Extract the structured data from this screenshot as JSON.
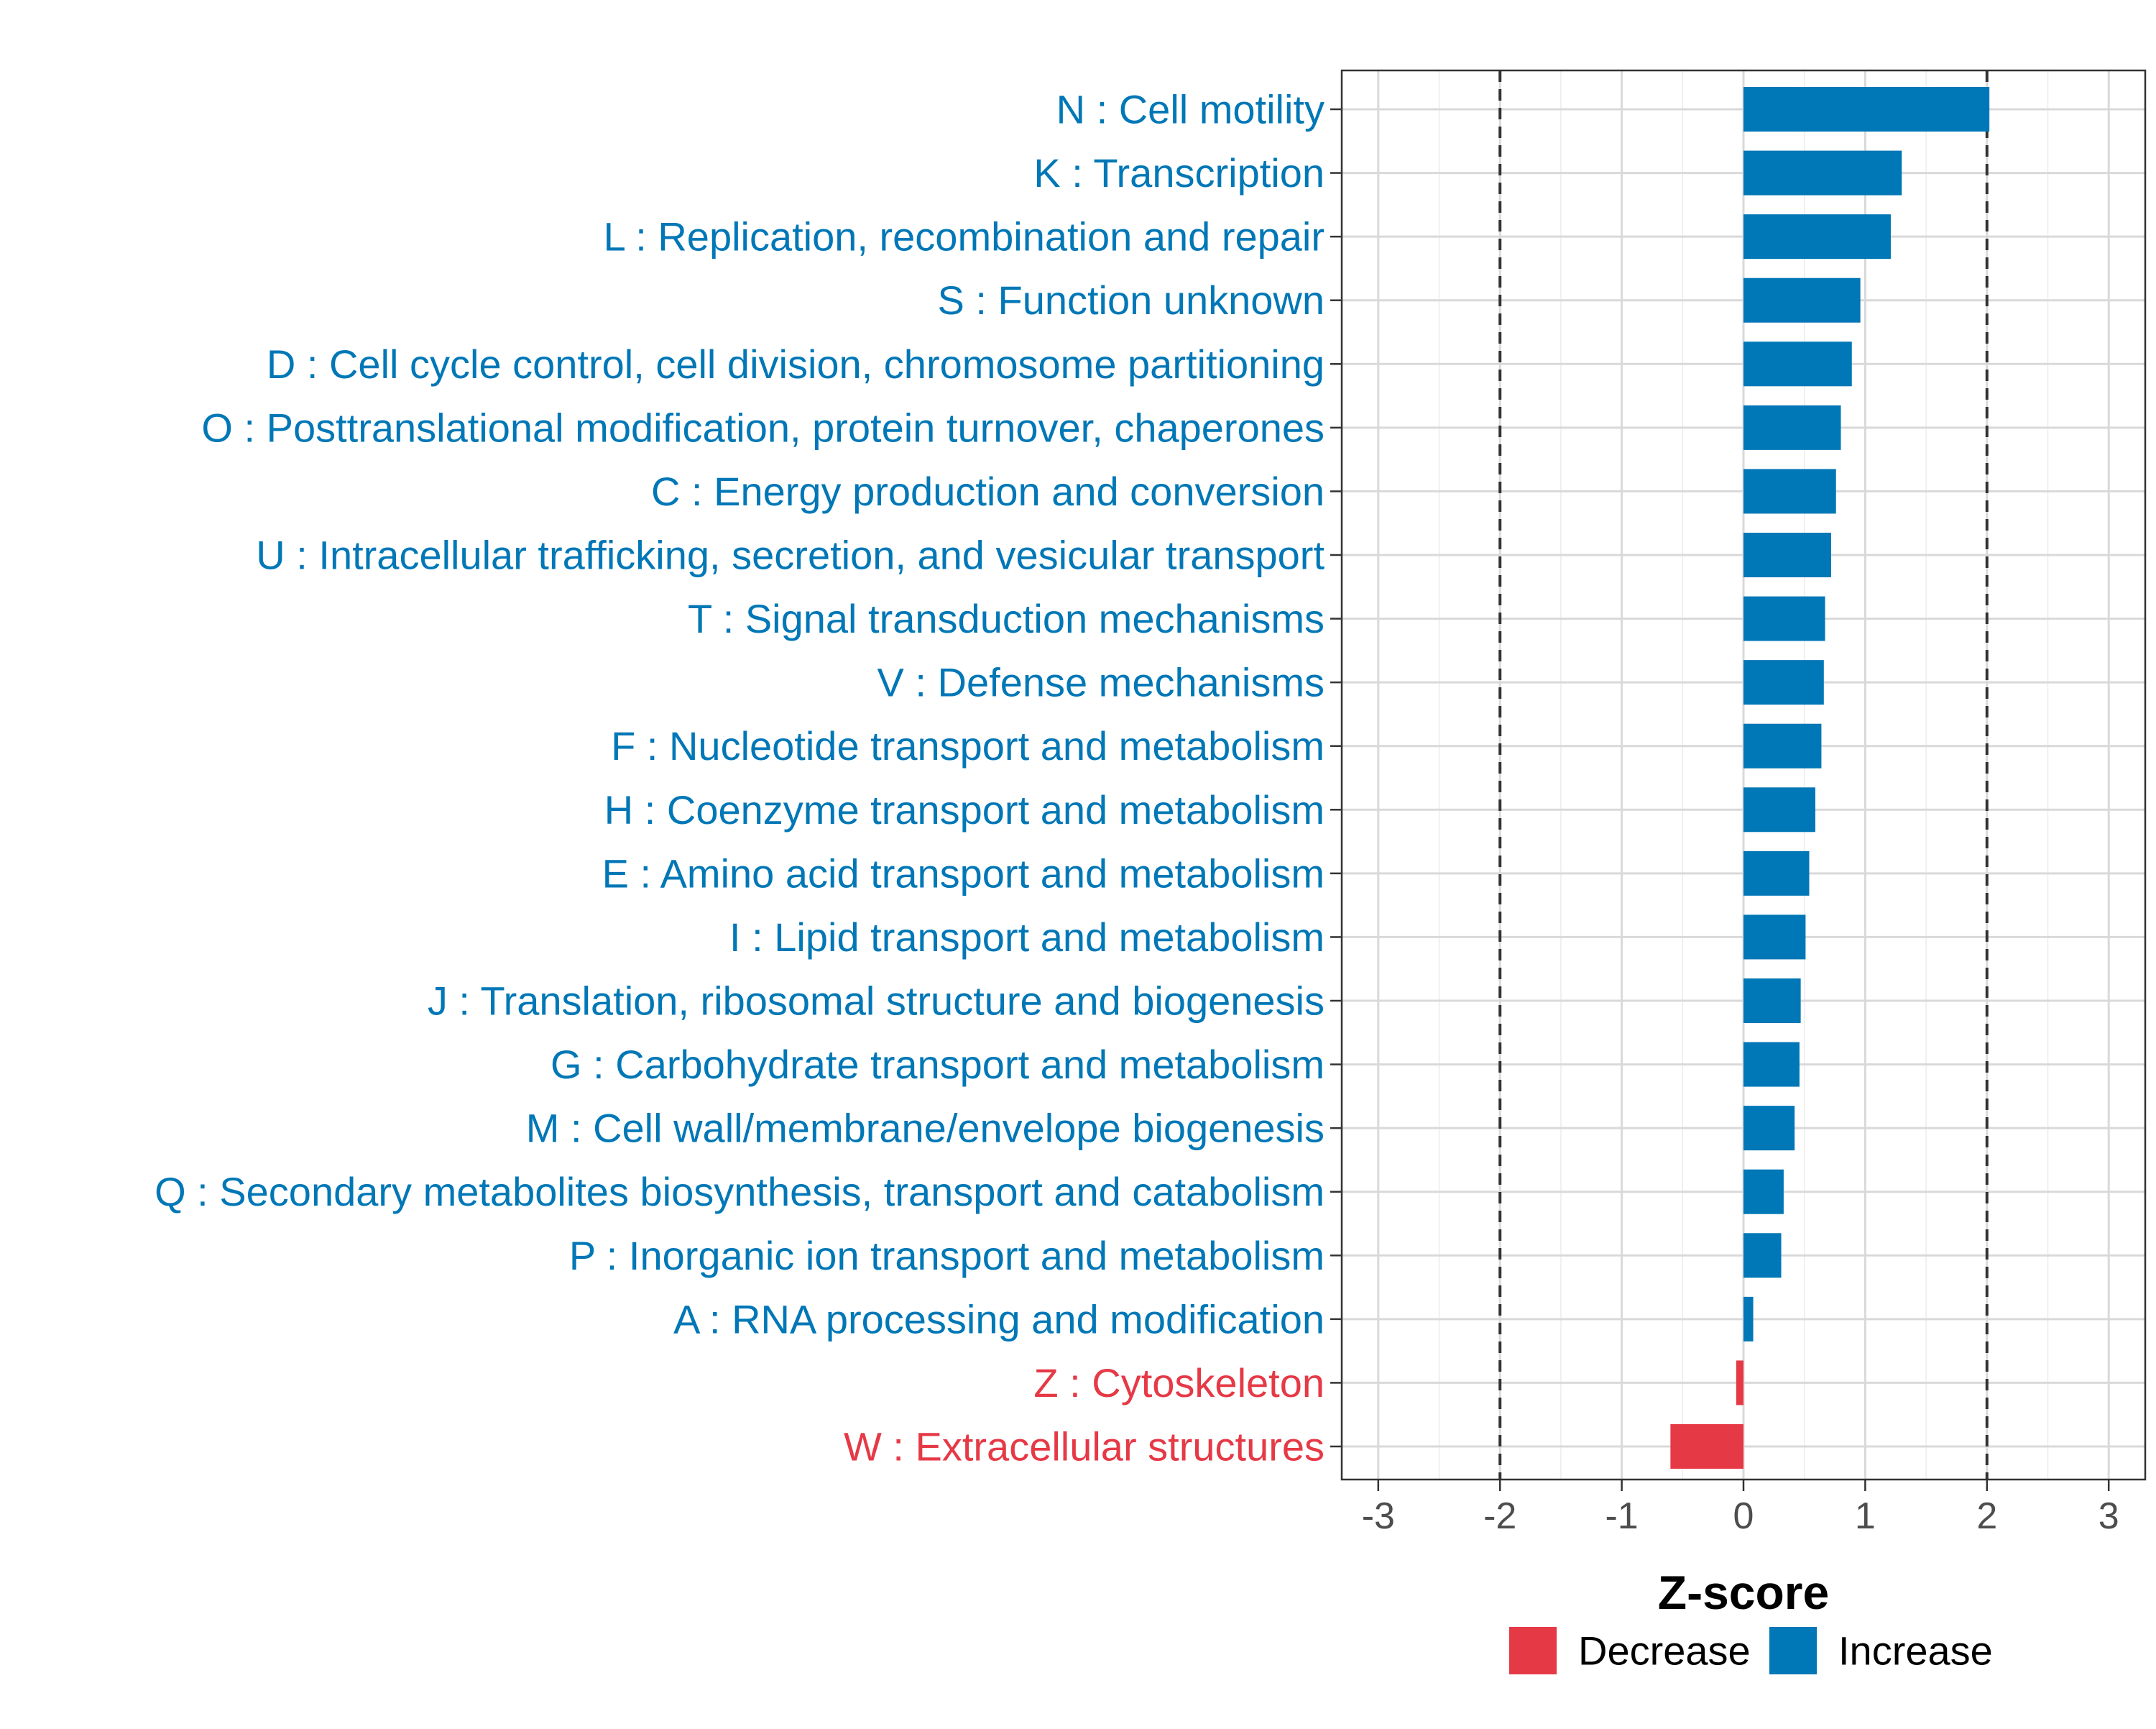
{
  "chart_data": {
    "type": "bar",
    "orientation": "horizontal",
    "title": "",
    "xlabel": "Z-score",
    "ylabel": "",
    "xlim": [
      -3.3,
      3.3
    ],
    "xticks": [
      -3,
      -2,
      -1,
      0,
      1,
      2,
      3
    ],
    "xtick_labels": [
      "-3",
      "-2",
      "-1",
      "0",
      "1",
      "2",
      "3"
    ],
    "reference_lines": [
      -2,
      2
    ],
    "grid": true,
    "legend_position": "bottom",
    "legend": [
      {
        "label": "Decrease",
        "color": "#e63946"
      },
      {
        "label": "Increase",
        "color": "#0077b6"
      }
    ],
    "bars": [
      {
        "label": "N : Cell motility",
        "value": 2.02,
        "direction": "Increase"
      },
      {
        "label": "K : Transcription",
        "value": 1.3,
        "direction": "Increase"
      },
      {
        "label": "L : Replication, recombination and repair",
        "value": 1.21,
        "direction": "Increase"
      },
      {
        "label": "S : Function unknown",
        "value": 0.96,
        "direction": "Increase"
      },
      {
        "label": "D : Cell cycle control, cell division, chromosome partitioning",
        "value": 0.89,
        "direction": "Increase"
      },
      {
        "label": "O : Posttranslational modification, protein turnover, chaperones",
        "value": 0.8,
        "direction": "Increase"
      },
      {
        "label": "C : Energy production and conversion",
        "value": 0.76,
        "direction": "Increase"
      },
      {
        "label": "U : Intracellular trafficking, secretion, and vesicular transport",
        "value": 0.72,
        "direction": "Increase"
      },
      {
        "label": "T : Signal transduction mechanisms",
        "value": 0.67,
        "direction": "Increase"
      },
      {
        "label": "V : Defense mechanisms",
        "value": 0.66,
        "direction": "Increase"
      },
      {
        "label": "F : Nucleotide transport and metabolism",
        "value": 0.64,
        "direction": "Increase"
      },
      {
        "label": "H : Coenzyme transport and metabolism",
        "value": 0.59,
        "direction": "Increase"
      },
      {
        "label": "E : Amino acid transport and metabolism",
        "value": 0.54,
        "direction": "Increase"
      },
      {
        "label": "I : Lipid transport and metabolism",
        "value": 0.51,
        "direction": "Increase"
      },
      {
        "label": "J : Translation, ribosomal structure and biogenesis",
        "value": 0.47,
        "direction": "Increase"
      },
      {
        "label": "G : Carbohydrate transport and metabolism",
        "value": 0.46,
        "direction": "Increase"
      },
      {
        "label": "M : Cell wall/membrane/envelope biogenesis",
        "value": 0.42,
        "direction": "Increase"
      },
      {
        "label": "Q : Secondary metabolites biosynthesis, transport and catabolism",
        "value": 0.33,
        "direction": "Increase"
      },
      {
        "label": "P : Inorganic ion transport and metabolism",
        "value": 0.31,
        "direction": "Increase"
      },
      {
        "label": "A : RNA processing and modification",
        "value": 0.08,
        "direction": "Increase"
      },
      {
        "label": "Z : Cytoskeleton",
        "value": -0.06,
        "direction": "Decrease"
      },
      {
        "label": "W : Extracellular structures",
        "value": -0.6,
        "direction": "Decrease"
      }
    ]
  }
}
